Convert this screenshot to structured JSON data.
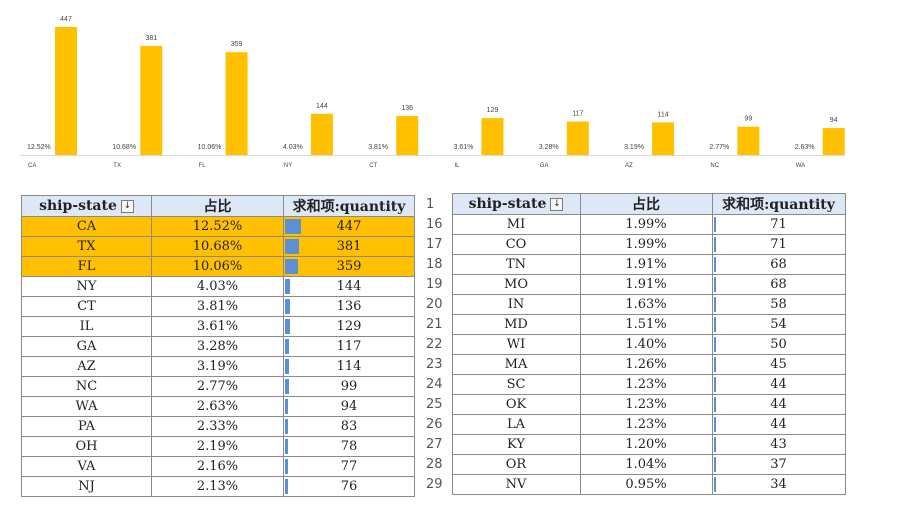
{
  "chart_data": {
    "type": "bar",
    "categories": [
      "CA",
      "TX",
      "FL",
      "NY",
      "CT",
      "IL",
      "GA",
      "AZ",
      "NC",
      "WA"
    ],
    "values": [
      447,
      381,
      359,
      144,
      136,
      129,
      117,
      114,
      99,
      94
    ],
    "percent_labels": [
      "12.52%",
      "10.68%",
      "10.06%",
      "4.03%",
      "3.81%",
      "3.61%",
      "3.28%",
      "3.19%",
      "2.77%",
      "2.63%"
    ],
    "bar_color": "#ffc000",
    "title": "",
    "xlabel": "",
    "ylabel": "",
    "ylim": [
      0,
      447
    ],
    "grid": false,
    "legend": "none"
  },
  "colors": {
    "highlight": "#ffc000",
    "header_bg": "#dce8f5",
    "databar": "#5b8fd6"
  },
  "left_table": {
    "headers": {
      "state": "ship-state",
      "share": "占比",
      "qty": "求和项:quantity"
    },
    "filter_icon": "sort-filter-icon",
    "filter_glyph": "↓",
    "rows": [
      {
        "state": "CA",
        "share": "12.52%",
        "qty": "447"
      },
      {
        "state": "TX",
        "share": "10.68%",
        "qty": "381"
      },
      {
        "state": "FL",
        "share": "10.06%",
        "qty": "359"
      },
      {
        "state": "NY",
        "share": "4.03%",
        "qty": "144"
      },
      {
        "state": "CT",
        "share": "3.81%",
        "qty": "136"
      },
      {
        "state": "IL",
        "share": "3.61%",
        "qty": "129"
      },
      {
        "state": "GA",
        "share": "3.28%",
        "qty": "117"
      },
      {
        "state": "AZ",
        "share": "3.19%",
        "qty": "114"
      },
      {
        "state": "NC",
        "share": "2.77%",
        "qty": "99"
      },
      {
        "state": "WA",
        "share": "2.63%",
        "qty": "94"
      },
      {
        "state": "PA",
        "share": "2.33%",
        "qty": "83"
      },
      {
        "state": "OH",
        "share": "2.19%",
        "qty": "78"
      },
      {
        "state": "VA",
        "share": "2.16%",
        "qty": "77"
      },
      {
        "state": "NJ",
        "share": "2.13%",
        "qty": "76"
      }
    ]
  },
  "right_table": {
    "header_rownum": "1",
    "headers": {
      "state": "ship-state",
      "share": "占比",
      "qty": "求和项:quantity"
    },
    "filter_glyph": "↓",
    "rows": [
      {
        "num": "16",
        "state": "MI",
        "share": "1.99%",
        "qty": "71"
      },
      {
        "num": "17",
        "state": "CO",
        "share": "1.99%",
        "qty": "71"
      },
      {
        "num": "18",
        "state": "TN",
        "share": "1.91%",
        "qty": "68"
      },
      {
        "num": "19",
        "state": "MO",
        "share": "1.91%",
        "qty": "68"
      },
      {
        "num": "20",
        "state": "IN",
        "share": "1.63%",
        "qty": "58"
      },
      {
        "num": "21",
        "state": "MD",
        "share": "1.51%",
        "qty": "54"
      },
      {
        "num": "22",
        "state": "WI",
        "share": "1.40%",
        "qty": "50"
      },
      {
        "num": "23",
        "state": "MA",
        "share": "1.26%",
        "qty": "45"
      },
      {
        "num": "24",
        "state": "SC",
        "share": "1.23%",
        "qty": "44"
      },
      {
        "num": "25",
        "state": "OK",
        "share": "1.23%",
        "qty": "44"
      },
      {
        "num": "26",
        "state": "LA",
        "share": "1.23%",
        "qty": "44"
      },
      {
        "num": "27",
        "state": "KY",
        "share": "1.20%",
        "qty": "43"
      },
      {
        "num": "28",
        "state": "OR",
        "share": "1.04%",
        "qty": "37"
      },
      {
        "num": "29",
        "state": "NV",
        "share": "0.95%",
        "qty": "34"
      }
    ]
  }
}
